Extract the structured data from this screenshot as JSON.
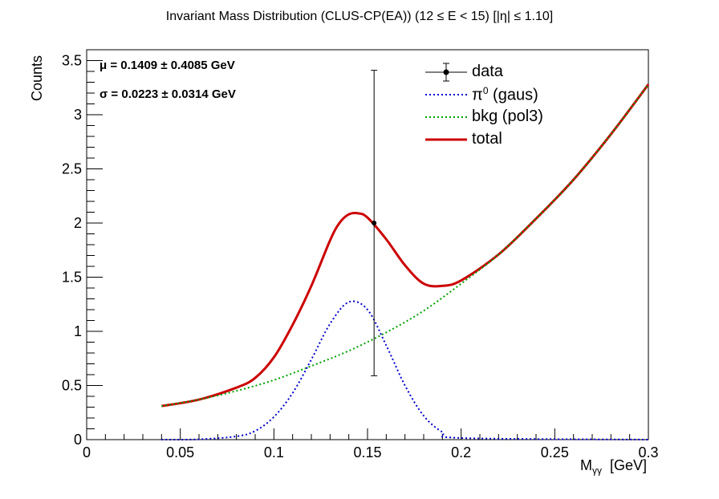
{
  "title": "Invariant Mass Distribution (CLUS-CP(EA))    (12 ≤ E < 15)    [|η| ≤ 1.10]",
  "fit_text": {
    "mu": "μ = 0.1409 ± 0.4085 GeV",
    "sigma": "σ = 0.0223 ± 0.0314 GeV"
  },
  "legend": {
    "data": "data",
    "pi0_prefix": "π",
    "pi0_sup": "0",
    "pi0_suffix": " (gaus)",
    "bkg": "bkg (pol3)",
    "total": "total"
  },
  "colors": {
    "data": "#000000",
    "signal": "#0000cc",
    "background": "#00a000",
    "total": "#cc0000"
  },
  "chart_data": {
    "type": "line",
    "xlabel_main": "M",
    "xlabel_sub": "γγ",
    "xlabel_unit": "[GeV]",
    "ylabel": "Counts",
    "xlim": [
      0,
      0.3
    ],
    "ylim": [
      0,
      3.6
    ],
    "x_ticks": [
      0,
      0.05,
      0.1,
      0.15,
      0.2,
      0.25,
      0.3
    ],
    "x_tick_labels": [
      "0",
      "0.05",
      "0.1",
      "0.15",
      "0.2",
      "0.25",
      "0.3"
    ],
    "y_ticks": [
      0,
      0.5,
      1,
      1.5,
      2,
      2.5,
      3,
      3.5
    ],
    "y_tick_labels": [
      "0",
      "0.5",
      "1",
      "1.5",
      "2",
      "2.5",
      "3",
      "3.5"
    ],
    "grid": false,
    "legend_position": "top-right",
    "data_points": [
      {
        "x": 0.1535,
        "y": 2.0,
        "y_low": 0.59,
        "y_high": 3.41
      }
    ],
    "series": [
      {
        "name": "π⁰ (gaus)",
        "style": "dotted",
        "x": [
          0.04,
          0.06,
          0.08,
          0.09,
          0.1,
          0.11,
          0.12,
          0.13,
          0.14,
          0.15,
          0.16,
          0.17,
          0.18,
          0.19,
          0.2,
          0.3
        ],
        "y": [
          0.0,
          0.003,
          0.03,
          0.08,
          0.21,
          0.43,
          0.74,
          1.07,
          1.27,
          1.2,
          0.87,
          0.5,
          0.22,
          0.07,
          0.015,
          0.0
        ]
      },
      {
        "name": "bkg (pol3)",
        "style": "dotted",
        "x": [
          0.04,
          0.06,
          0.08,
          0.1,
          0.12,
          0.14,
          0.16,
          0.18,
          0.2,
          0.22,
          0.24,
          0.26,
          0.28,
          0.3
        ],
        "y": [
          0.31,
          0.37,
          0.45,
          0.55,
          0.68,
          0.82,
          0.99,
          1.19,
          1.44,
          1.71,
          2.04,
          2.4,
          2.82,
          3.28
        ]
      },
      {
        "name": "total",
        "style": "solid",
        "x": [
          0.04,
          0.06,
          0.08,
          0.09,
          0.1,
          0.11,
          0.12,
          0.13,
          0.135,
          0.14,
          0.145,
          0.15,
          0.16,
          0.17,
          0.18,
          0.19,
          0.2,
          0.22,
          0.24,
          0.26,
          0.28,
          0.3
        ],
        "y": [
          0.31,
          0.37,
          0.48,
          0.57,
          0.76,
          1.06,
          1.42,
          1.84,
          2.0,
          2.08,
          2.09,
          2.05,
          1.85,
          1.61,
          1.44,
          1.42,
          1.47,
          1.71,
          2.04,
          2.4,
          2.82,
          3.28
        ]
      }
    ]
  }
}
